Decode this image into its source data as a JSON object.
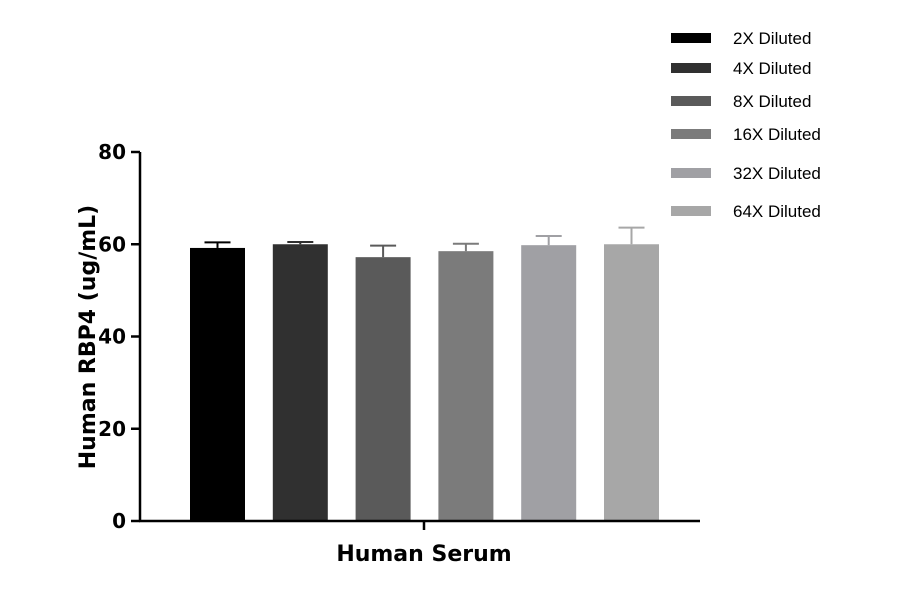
{
  "chart_data": {
    "type": "bar",
    "categories": [
      "Human Serum"
    ],
    "series": [
      {
        "name": "2X Diluted",
        "values": [
          59.2
        ],
        "error": [
          1.2
        ],
        "color": "#000000"
      },
      {
        "name": "4X Diluted",
        "values": [
          60.0
        ],
        "error": [
          0.5
        ],
        "color": "#303030"
      },
      {
        "name": "8X Diluted",
        "values": [
          57.2
        ],
        "error": [
          2.5
        ],
        "color": "#5a5a5a"
      },
      {
        "name": "16X Diluted",
        "values": [
          58.5
        ],
        "error": [
          1.6
        ],
        "color": "#7b7b7b"
      },
      {
        "name": "32X Diluted",
        "values": [
          59.8
        ],
        "error": [
          2.0
        ],
        "color": "#a0a0a4"
      },
      {
        "name": "64X Diluted",
        "values": [
          60.0
        ],
        "error": [
          3.6
        ],
        "color": "#a7a7a7"
      }
    ],
    "xlabel": "Human Serum",
    "ylabel": "Human RBP4 (ug/mL)",
    "ylim": [
      0,
      80
    ],
    "yticks": [
      0,
      20,
      40,
      60,
      80
    ],
    "grid": false,
    "legend_position": "top-right"
  }
}
